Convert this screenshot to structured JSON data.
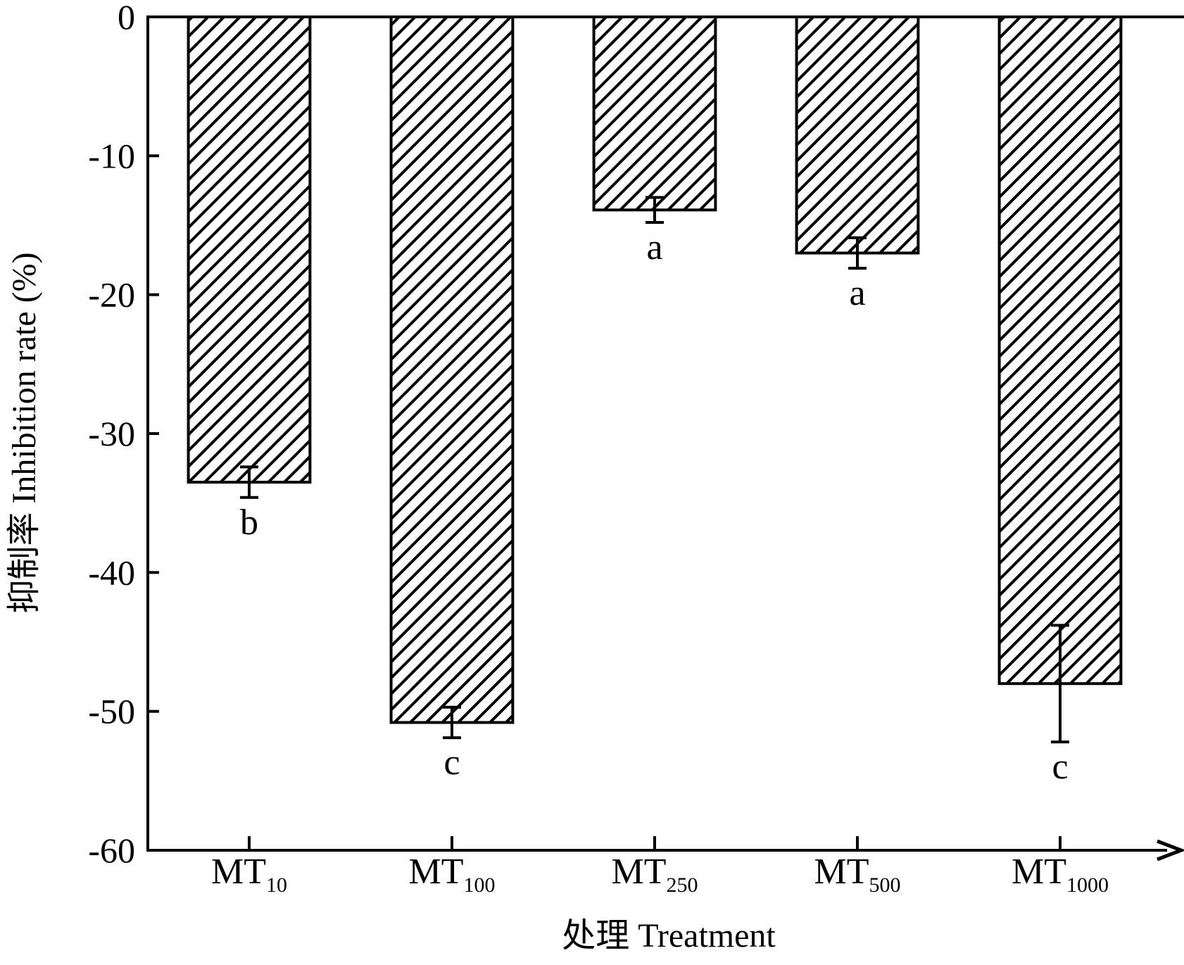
{
  "chart_data": {
    "type": "bar",
    "categories": [
      {
        "main": "MT",
        "sub": "10"
      },
      {
        "main": "MT",
        "sub": "100"
      },
      {
        "main": "MT",
        "sub": "250"
      },
      {
        "main": "MT",
        "sub": "500"
      },
      {
        "main": "MT",
        "sub": "1000"
      }
    ],
    "values": [
      -33.5,
      -50.8,
      -13.9,
      -17.0,
      -48.0
    ],
    "errors": [
      1.1,
      1.1,
      0.9,
      1.1,
      4.2
    ],
    "significance": [
      "b",
      "c",
      "a",
      "a",
      "c"
    ],
    "xlabel": "处理 Treatment",
    "ylabel": "抑制率 Inhibition rate (%)",
    "ylim": [
      -60,
      0
    ],
    "yticks": [
      "0",
      "-10",
      "-20",
      "-30",
      "-40",
      "-50",
      "-60"
    ],
    "grid": false,
    "bar_fill": "diagonal-hatch",
    "colors": {
      "bar_outline": "#000000",
      "hatch": "#000000",
      "background": "#ffffff"
    }
  }
}
